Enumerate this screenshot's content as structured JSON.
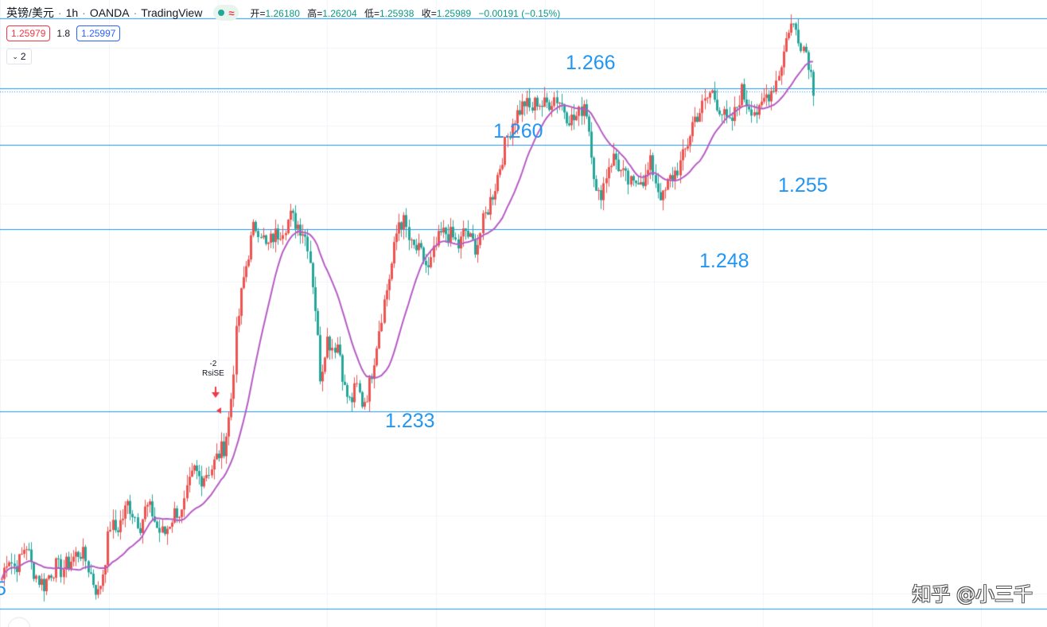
{
  "header": {
    "symbol": "英镑/美元",
    "interval": "1h",
    "broker": "OANDA",
    "platform": "TradingView",
    "ohlc": {
      "open_label": "开=",
      "open": "1.26180",
      "high_label": "高=",
      "high": "1.26204",
      "low_label": "低=",
      "low": "1.25938",
      "close_label": "收=",
      "close": "1.25989",
      "change": "−0.00191 (−0.15%)"
    }
  },
  "prices": {
    "sell": "1.25979",
    "spread": "1.8",
    "buy": "1.25997"
  },
  "collapse": {
    "label": "2"
  },
  "levels": [
    {
      "label": "1.266",
      "price": 1.266
    },
    {
      "label": "1.260",
      "price": 1.2602
    },
    {
      "label": "1.255",
      "price": 1.2555
    },
    {
      "label": "1.248",
      "price": 1.2485
    },
    {
      "label": "1.233",
      "price": 1.2334
    },
    {
      "label": "5",
      "price": 1.217
    }
  ],
  "signal": {
    "value": "-2",
    "name": "RsiSE"
  },
  "watermark": "知乎 @小三千",
  "colors": {
    "up": "#ef5350",
    "down": "#26a69a",
    "ma": "#b65bc4",
    "level": "#2196f3"
  },
  "chart_data": {
    "type": "candlestick",
    "ylim": [
      1.2155,
      1.2675
    ],
    "close_path": [
      1.2195,
      1.2215,
      1.2205,
      1.221,
      1.2225,
      1.2205,
      1.2195,
      1.219,
      1.22,
      1.2205,
      1.2202,
      1.2208,
      1.2213,
      1.2218,
      1.221,
      1.2195,
      1.2182,
      1.2205,
      1.224,
      1.2235,
      1.2245,
      1.2258,
      1.2248,
      1.224,
      1.2255,
      1.225,
      1.2235,
      1.2232,
      1.2243,
      1.2252,
      1.2248,
      1.227,
      1.2285,
      1.2278,
      1.2283,
      1.2288,
      1.2298,
      1.2305,
      1.2335,
      1.2398,
      1.2438,
      1.2465,
      1.2488,
      1.2485,
      1.2468,
      1.2478,
      1.2482,
      1.2488,
      1.2495,
      1.249,
      1.2485,
      1.2472,
      1.2428,
      1.236,
      1.2395,
      1.2388,
      1.239,
      1.2352,
      1.234,
      1.2355,
      1.234,
      1.2352,
      1.238,
      1.241,
      1.2435,
      1.246,
      1.2492,
      1.249,
      1.247,
      1.2468,
      1.2462,
      1.245,
      1.2468,
      1.248,
      1.2482,
      1.2478,
      1.247,
      1.2485,
      1.2475,
      1.247,
      1.249,
      1.2505,
      1.252,
      1.254,
      1.256,
      1.2575,
      1.2583,
      1.259,
      1.2583,
      1.2592,
      1.2587,
      1.259,
      1.2595,
      1.259,
      1.258,
      1.2575,
      1.258,
      1.2592,
      1.2555,
      1.2508,
      1.252,
      1.254,
      1.2545,
      1.2532,
      1.2525,
      1.252,
      1.253,
      1.2525,
      1.254,
      1.252,
      1.251,
      1.2525,
      1.2532,
      1.254,
      1.2555,
      1.2575,
      1.2582,
      1.259,
      1.26,
      1.259,
      1.258,
      1.257,
      1.2582,
      1.26,
      1.259,
      1.2585,
      1.258,
      1.2595,
      1.26,
      1.261,
      1.263,
      1.2655,
      1.2652,
      1.264,
      1.263,
      1.2602
    ]
  }
}
